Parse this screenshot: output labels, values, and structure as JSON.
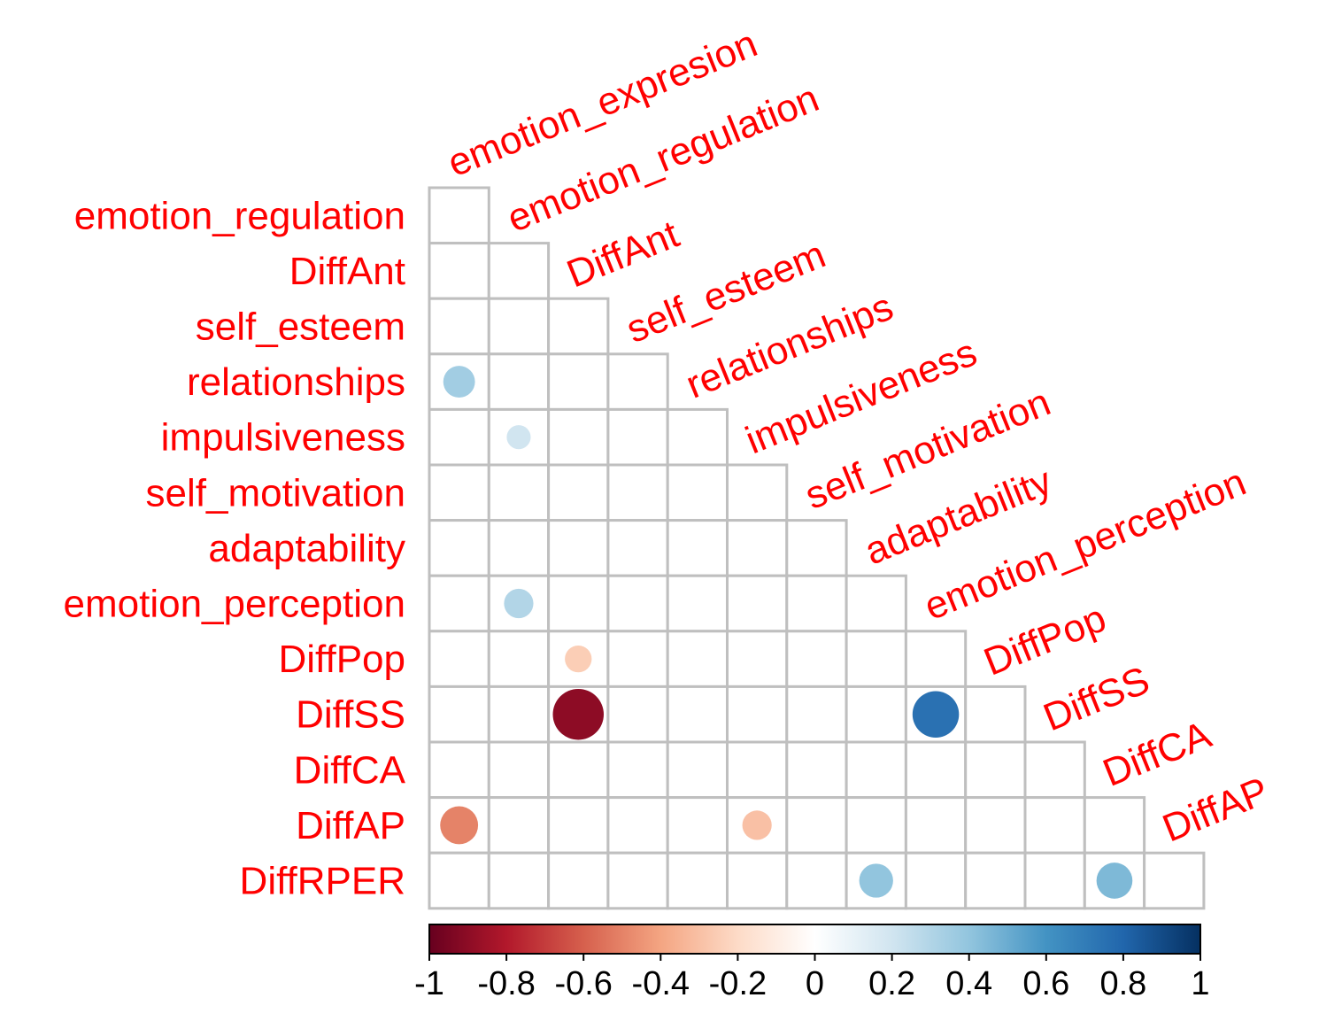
{
  "chart_data": {
    "type": "heatmap",
    "title": "",
    "shape": "lower-triangle-circles",
    "row_labels": [
      "emotion_regulation",
      "DiffAnt",
      "self_esteem",
      "relationships",
      "impulsiveness",
      "self_motivation",
      "adaptability",
      "emotion_perception",
      "DiffPop",
      "DiffSS",
      "DiffCA",
      "DiffAP",
      "DiffRPER"
    ],
    "col_labels": [
      "emotion_expresion",
      "emotion_regulation",
      "DiffAnt",
      "self_esteem",
      "relationships",
      "impulsiveness",
      "self_motivation",
      "adaptability",
      "emotion_perception",
      "DiffPop",
      "DiffSS",
      "DiffCA",
      "DiffAP"
    ],
    "values": [
      {
        "row": "relationships",
        "col": "emotion_expresion",
        "value": 0.35
      },
      {
        "row": "impulsiveness",
        "col": "emotion_regulation",
        "value": 0.2
      },
      {
        "row": "emotion_perception",
        "col": "emotion_regulation",
        "value": 0.3
      },
      {
        "row": "DiffPop",
        "col": "DiffAnt",
        "value": -0.25
      },
      {
        "row": "DiffSS",
        "col": "DiffAnt",
        "value": -0.9
      },
      {
        "row": "DiffSS",
        "col": "emotion_perception",
        "value": 0.75
      },
      {
        "row": "DiffAP",
        "col": "emotion_expresion",
        "value": -0.5
      },
      {
        "row": "DiffAP",
        "col": "impulsiveness",
        "value": -0.3
      },
      {
        "row": "DiffRPER",
        "col": "adaptability",
        "value": 0.4
      },
      {
        "row": "DiffRPER",
        "col": "DiffCA",
        "value": 0.45
      }
    ],
    "colorbar": {
      "min": -1,
      "max": 1,
      "ticks": [
        "-1",
        "-0.8",
        "-0.6",
        "-0.4",
        "-0.2",
        "0",
        "0.2",
        "0.4",
        "0.6",
        "0.8",
        "1"
      ],
      "colors": [
        "#67001F",
        "#B2182B",
        "#D6604D",
        "#F4A582",
        "#FDDBC7",
        "#FFFFFF",
        "#D1E5F0",
        "#92C5DE",
        "#4393C3",
        "#2166AC",
        "#053061"
      ]
    },
    "label_color": "#ff0000",
    "grid_color": "#bfbfbf"
  }
}
